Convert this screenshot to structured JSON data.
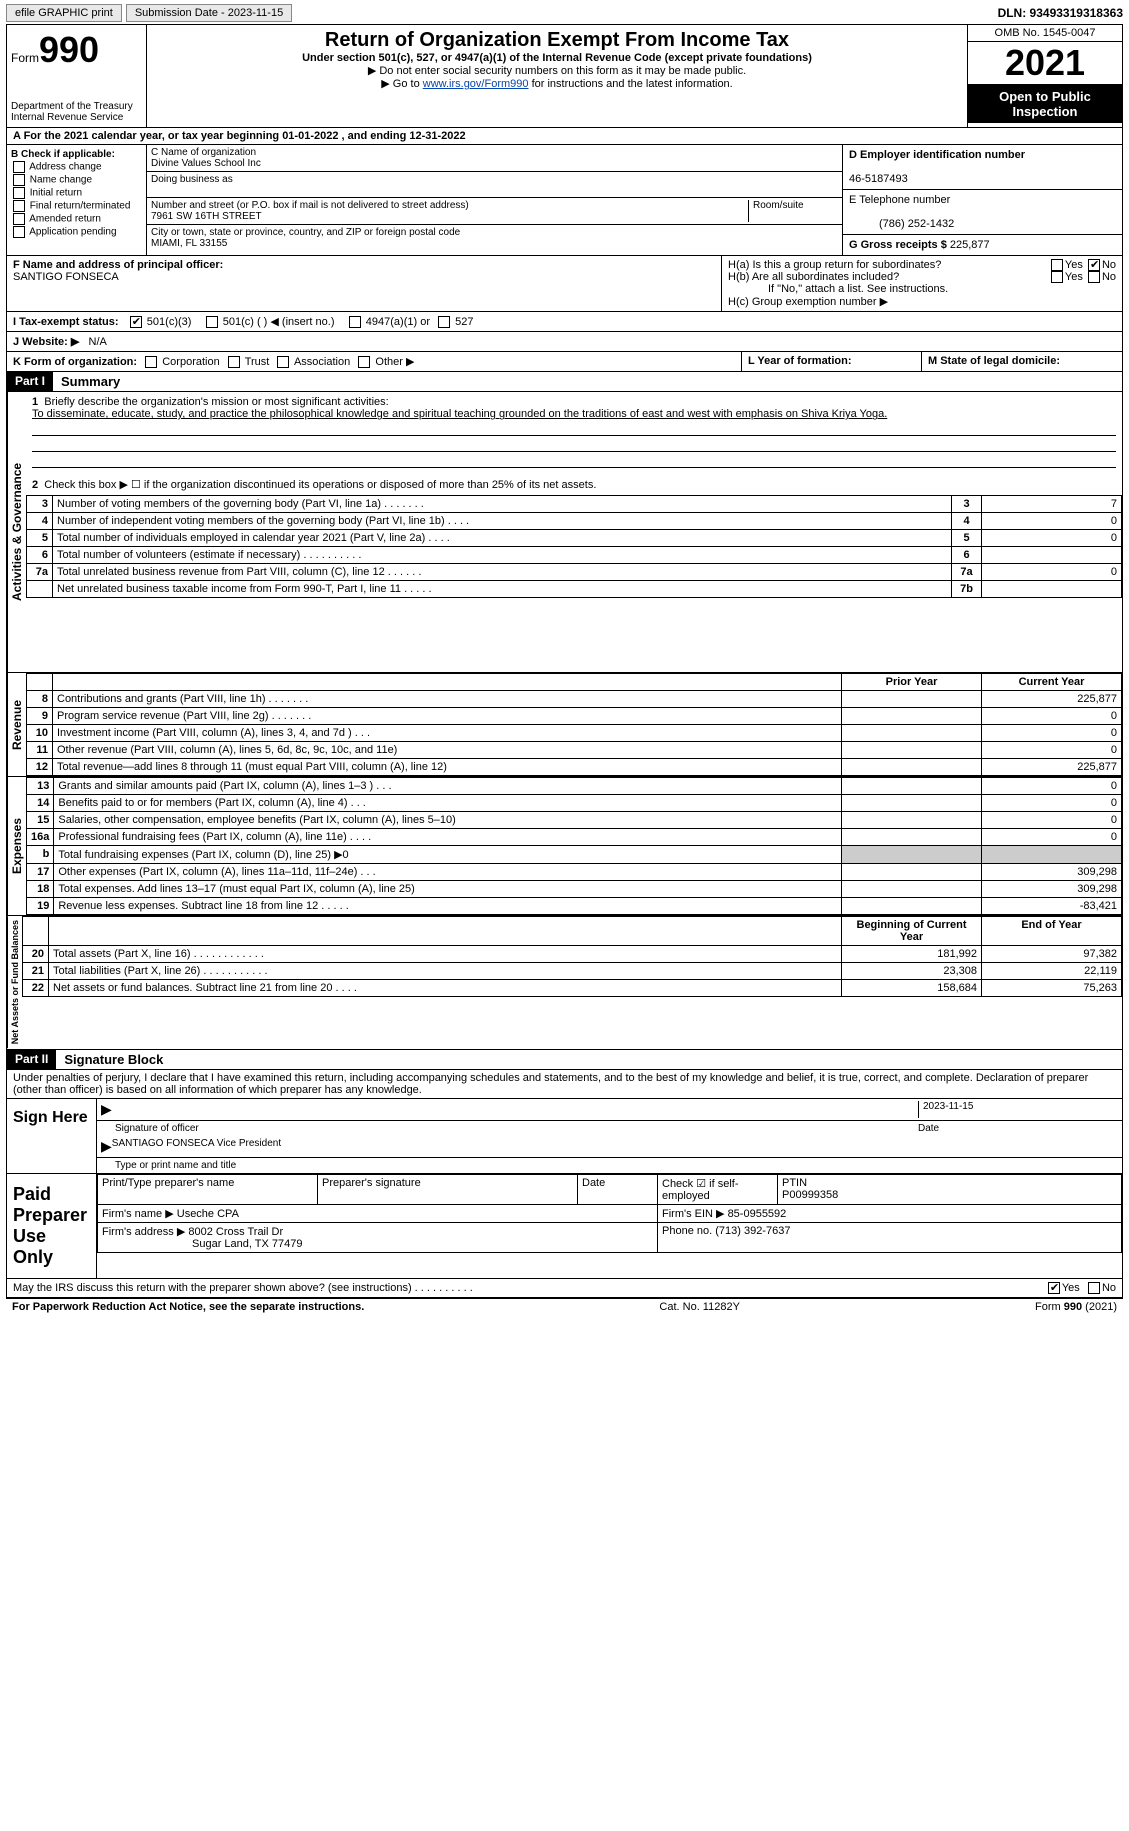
{
  "topbar": {
    "efile_label": "efile GRAPHIC print",
    "submission_label": "Submission Date - 2023-11-15",
    "dln": "DLN: 93493319318363"
  },
  "header": {
    "form_word": "Form",
    "form_number": "990",
    "dept": "Department of the Treasury",
    "irs": "Internal Revenue Service",
    "title": "Return of Organization Exempt From Income Tax",
    "sub1": "Under section 501(c), 527, or 4947(a)(1) of the Internal Revenue Code (except private foundations)",
    "sub2": "▶ Do not enter social security numbers on this form as it may be made public.",
    "sub3_pre": "▶ Go to ",
    "sub3_link": "www.irs.gov/Form990",
    "sub3_post": " for instructions and the latest information.",
    "omb": "OMB No. 1545-0047",
    "year": "2021",
    "otpi": "Open to Public Inspection"
  },
  "row_a": "A For the 2021 calendar year, or tax year beginning 01-01-2022    , and ending 12-31-2022",
  "box_b": {
    "label": "B Check if applicable:",
    "opts": [
      "Address change",
      "Name change",
      "Initial return",
      "Final return/terminated",
      "Amended return",
      "Application pending"
    ]
  },
  "box_c": {
    "name_label": "C Name of organization",
    "name": "Divine Values School Inc",
    "dba_label": "Doing business as",
    "addr_label": "Number and street (or P.O. box if mail is not delivered to street address)",
    "room_label": "Room/suite",
    "addr": "7961 SW 16TH STREET",
    "city_label": "City or town, state or province, country, and ZIP or foreign postal code",
    "city": "MIAMI, FL  33155"
  },
  "box_d": {
    "label": "D Employer identification number",
    "value": "46-5187493"
  },
  "box_e": {
    "label": "E Telephone number",
    "value": "(786) 252-1432"
  },
  "box_g": {
    "label": "G Gross receipts $",
    "value": "225,877"
  },
  "box_f": {
    "label": "F Name and address of principal officer:",
    "name": "SANTIGO FONSECA"
  },
  "box_h": {
    "a": "H(a)  Is this a group return for subordinates?",
    "b": "H(b)  Are all subordinates included?",
    "note": "If \"No,\" attach a list. See instructions.",
    "c": "H(c)  Group exemption number ▶",
    "yes": "Yes",
    "no": "No"
  },
  "box_i": {
    "label": "I  Tax-exempt status:",
    "o1": "501(c)(3)",
    "o2": "501(c) (  ) ◀ (insert no.)",
    "o3": "4947(a)(1) or",
    "o4": "527"
  },
  "box_j": {
    "label": "J  Website: ▶",
    "value": "N/A"
  },
  "box_k": {
    "label": "K Form of organization:",
    "o1": "Corporation",
    "o2": "Trust",
    "o3": "Association",
    "o4": "Other ▶"
  },
  "box_l": "L Year of formation:",
  "box_m": "M State of legal domicile:",
  "part1": {
    "hdr": "Part I",
    "title": "Summary",
    "q1": "Briefly describe the organization's mission or most significant activities:",
    "mission": "To disseminate, educate, study, and practice the philosophical knowledge and spiritual teaching grounded on the traditions of east and west with emphasis on Shiva Kriya Yoga.",
    "q2": "Check this box ▶ ☐  if the organization discontinued its operations or disposed of more than 25% of its net assets.",
    "lines": [
      {
        "n": "3",
        "t": "Number of voting members of the governing body (Part VI, line 1a)   .    .    .    .    .    .    .",
        "b": "3",
        "v": "7"
      },
      {
        "n": "4",
        "t": "Number of independent voting members of the governing body (Part VI, line 1b)   .    .    .    .",
        "b": "4",
        "v": "0"
      },
      {
        "n": "5",
        "t": "Total number of individuals employed in calendar year 2021 (Part V, line 2a)   .    .    .    .",
        "b": "5",
        "v": "0"
      },
      {
        "n": "6",
        "t": "Total number of volunteers (estimate if necessary)    .    .    .    .    .    .    .    .    .    .",
        "b": "6",
        "v": ""
      },
      {
        "n": "7a",
        "t": "Total unrelated business revenue from Part VIII, column (C), line 12    .    .    .    .    .    .",
        "b": "7a",
        "v": "0"
      },
      {
        "n": "",
        "t": "Net unrelated business taxable income from Form 990-T, Part I, line 11    .    .    .    .    .",
        "b": "7b",
        "v": ""
      }
    ],
    "col_prior": "Prior Year",
    "col_current": "Current Year",
    "col_begin": "Beginning of Current Year",
    "col_end": "End of Year",
    "rev": [
      {
        "n": "8",
        "t": "Contributions and grants (Part VIII, line 1h)   .    .    .    .    .    .    .",
        "p": "",
        "c": "225,877"
      },
      {
        "n": "9",
        "t": "Program service revenue (Part VIII, line 2g)   .    .    .    .    .    .    .",
        "p": "",
        "c": "0"
      },
      {
        "n": "10",
        "t": "Investment income (Part VIII, column (A), lines 3, 4, and 7d )   .    .    .",
        "p": "",
        "c": "0"
      },
      {
        "n": "11",
        "t": "Other revenue (Part VIII, column (A), lines 5, 6d, 8c, 9c, 10c, and 11e)",
        "p": "",
        "c": "0"
      },
      {
        "n": "12",
        "t": "Total revenue—add lines 8 through 11 (must equal Part VIII, column (A), line 12)",
        "p": "",
        "c": "225,877"
      }
    ],
    "exp": [
      {
        "n": "13",
        "t": "Grants and similar amounts paid (Part IX, column (A), lines 1–3 )   .    .    .",
        "p": "",
        "c": "0"
      },
      {
        "n": "14",
        "t": "Benefits paid to or for members (Part IX, column (A), line 4)   .    .    .",
        "p": "",
        "c": "0"
      },
      {
        "n": "15",
        "t": "Salaries, other compensation, employee benefits (Part IX, column (A), lines 5–10)",
        "p": "",
        "c": "0"
      },
      {
        "n": "16a",
        "t": "Professional fundraising fees (Part IX, column (A), line 11e)   .    .    .    .",
        "p": "",
        "c": "0"
      },
      {
        "n": "b",
        "t": "Total fundraising expenses (Part IX, column (D), line 25) ▶0",
        "p": "shade",
        "c": "shade"
      },
      {
        "n": "17",
        "t": "Other expenses (Part IX, column (A), lines 11a–11d, 11f–24e)   .    .    .",
        "p": "",
        "c": "309,298"
      },
      {
        "n": "18",
        "t": "Total expenses. Add lines 13–17 (must equal Part IX, column (A), line 25)",
        "p": "",
        "c": "309,298"
      },
      {
        "n": "19",
        "t": "Revenue less expenses. Subtract line 18 from line 12    .    .    .    .    .",
        "p": "",
        "c": "-83,421"
      }
    ],
    "net": [
      {
        "n": "20",
        "t": "Total assets (Part X, line 16)  .    .    .    .    .    .    .    .    .    .    .    .",
        "p": "181,992",
        "c": "97,382"
      },
      {
        "n": "21",
        "t": "Total liabilities (Part X, line 26)  .    .    .    .    .    .    .    .    .    .    .",
        "p": "23,308",
        "c": "22,119"
      },
      {
        "n": "22",
        "t": "Net assets or fund balances. Subtract line 21 from line 20    .    .    .    .",
        "p": "158,684",
        "c": "75,263"
      }
    ],
    "tab_ag": "Activities & Governance",
    "tab_rev": "Revenue",
    "tab_exp": "Expenses",
    "tab_net": "Net Assets or Fund Balances"
  },
  "part2": {
    "hdr": "Part II",
    "title": "Signature Block",
    "decl": "Under penalties of perjury, I declare that I have examined this return, including accompanying schedules and statements, and to the best of my knowledge and belief, it is true, correct, and complete. Declaration of preparer (other than officer) is based on all information of which preparer has any knowledge.",
    "sign_here": "Sign Here",
    "sig_officer": "Signature of officer",
    "sig_date": "2023-11-15",
    "date_lbl": "Date",
    "name_title": "SANTIAGO FONSECA  Vice President",
    "type_name": "Type or print name and title",
    "paid": "Paid Preparer Use Only",
    "pp_name_lbl": "Print/Type preparer's name",
    "pp_sig_lbl": "Preparer's signature",
    "pp_date_lbl": "Date",
    "pp_check": "Check ☑ if self-employed",
    "ptin_lbl": "PTIN",
    "ptin": "P00999358",
    "firm_name_lbl": "Firm's name    ▶",
    "firm_name": "Useche CPA",
    "firm_ein_lbl": "Firm's EIN ▶",
    "firm_ein": "85-0955592",
    "firm_addr_lbl": "Firm's address ▶",
    "firm_addr1": "8002 Cross Trail Dr",
    "firm_addr2": "Sugar Land, TX  77479",
    "phone_lbl": "Phone no.",
    "phone": "(713) 392-7637",
    "may_irs": "May the IRS discuss this return with the preparer shown above? (see instructions)   .    .    .    .    .    .    .    .    .    .",
    "yes": "Yes",
    "no": "No"
  },
  "footer": {
    "left": "For Paperwork Reduction Act Notice, see the separate instructions.",
    "mid": "Cat. No. 11282Y",
    "right": "Form 990 (2021)"
  }
}
